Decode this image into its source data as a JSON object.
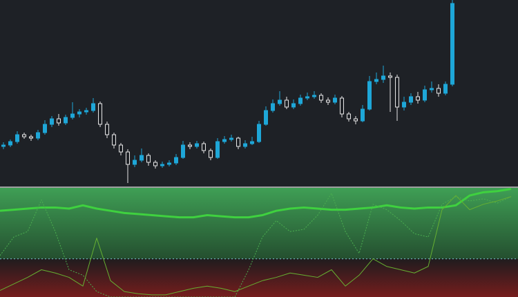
{
  "chart_data": [
    {
      "type": "candlestick",
      "up_color": "#1ea7d8",
      "down_color": "#e8e8e8",
      "ylim": [
        0,
        270
      ],
      "open": [
        58,
        60,
        65,
        75,
        72,
        70,
        78,
        90,
        98,
        92,
        100,
        105,
        108,
        110,
        120,
        90,
        75,
        60,
        50,
        32,
        38,
        45,
        35,
        30,
        32,
        34,
        42,
        60,
        58,
        62,
        52,
        42,
        65,
        68,
        70,
        58,
        62,
        65,
        90,
        110,
        120,
        125,
        115,
        120,
        128,
        130,
        132,
        125,
        122,
        128,
        105,
        98,
        95,
        112,
        152,
        155,
        160,
        158,
        115,
        122,
        130,
        125,
        140,
        142,
        135,
        148
      ],
      "high": [
        64,
        68,
        80,
        78,
        75,
        82,
        96,
        102,
        105,
        104,
        122,
        112,
        114,
        128,
        123,
        94,
        78,
        63,
        54,
        45,
        55,
        48,
        38,
        36,
        38,
        47,
        66,
        64,
        66,
        65,
        55,
        70,
        73,
        75,
        72,
        67,
        72,
        95,
        116,
        126,
        138,
        130,
        126,
        133,
        136,
        138,
        135,
        129,
        133,
        131,
        108,
        102,
        118,
        160,
        165,
        175,
        165,
        162,
        130,
        135,
        137,
        146,
        152,
        148,
        152,
        270
      ],
      "low": [
        54,
        57,
        62,
        69,
        66,
        67,
        75,
        86,
        88,
        89,
        97,
        100,
        104,
        107,
        86,
        70,
        55,
        45,
        5,
        28,
        35,
        30,
        26,
        27,
        29,
        31,
        40,
        54,
        55,
        48,
        38,
        40,
        62,
        65,
        54,
        55,
        60,
        63,
        88,
        107,
        117,
        112,
        112,
        117,
        125,
        127,
        121,
        118,
        119,
        100,
        94,
        90,
        93,
        110,
        148,
        150,
        108,
        95,
        110,
        118,
        120,
        122,
        136,
        130,
        132,
        145
      ],
      "close": [
        60,
        65,
        75,
        72,
        70,
        78,
        90,
        98,
        92,
        100,
        105,
        108,
        110,
        120,
        90,
        75,
        60,
        50,
        32,
        38,
        45,
        35,
        30,
        32,
        34,
        42,
        60,
        58,
        62,
        52,
        42,
        65,
        68,
        70,
        58,
        62,
        65,
        90,
        110,
        120,
        125,
        115,
        120,
        128,
        130,
        132,
        125,
        122,
        128,
        105,
        98,
        95,
        112,
        152,
        155,
        160,
        158,
        115,
        122,
        130,
        125,
        140,
        142,
        135,
        148,
        265
      ]
    },
    {
      "type": "line",
      "ylim": [
        0,
        100
      ],
      "reference_line": 35,
      "series": [
        {
          "color": "#3fd13f",
          "style": "solid",
          "width": 3,
          "values": [
            79,
            80,
            81,
            82,
            82,
            81,
            84,
            81,
            79,
            77,
            76,
            75,
            74,
            73,
            73,
            75,
            74,
            73,
            73,
            75,
            79,
            81,
            82,
            81,
            80,
            80,
            81,
            82,
            84,
            82,
            81,
            82,
            82,
            84,
            93,
            96,
            97,
            99
          ]
        },
        {
          "color": "#4caf50",
          "style": "dotted",
          "width": 1,
          "values": [
            38,
            55,
            60,
            89,
            60,
            25,
            20,
            5,
            0,
            0,
            0,
            0,
            0,
            0,
            0,
            0,
            0,
            0,
            25,
            55,
            70,
            60,
            62,
            75,
            95,
            60,
            40,
            85,
            80,
            70,
            58,
            55,
            85,
            92,
            88,
            90,
            86,
            92
          ]
        },
        {
          "color": "#66b032",
          "style": "solid",
          "width": 1,
          "values": [
            6,
            12,
            18,
            25,
            22,
            18,
            10,
            54,
            15,
            5,
            3,
            2,
            2,
            5,
            8,
            10,
            8,
            5,
            10,
            15,
            18,
            22,
            20,
            18,
            25,
            10,
            20,
            35,
            28,
            25,
            22,
            28,
            80,
            93,
            80,
            85,
            88,
            92
          ]
        }
      ]
    }
  ]
}
